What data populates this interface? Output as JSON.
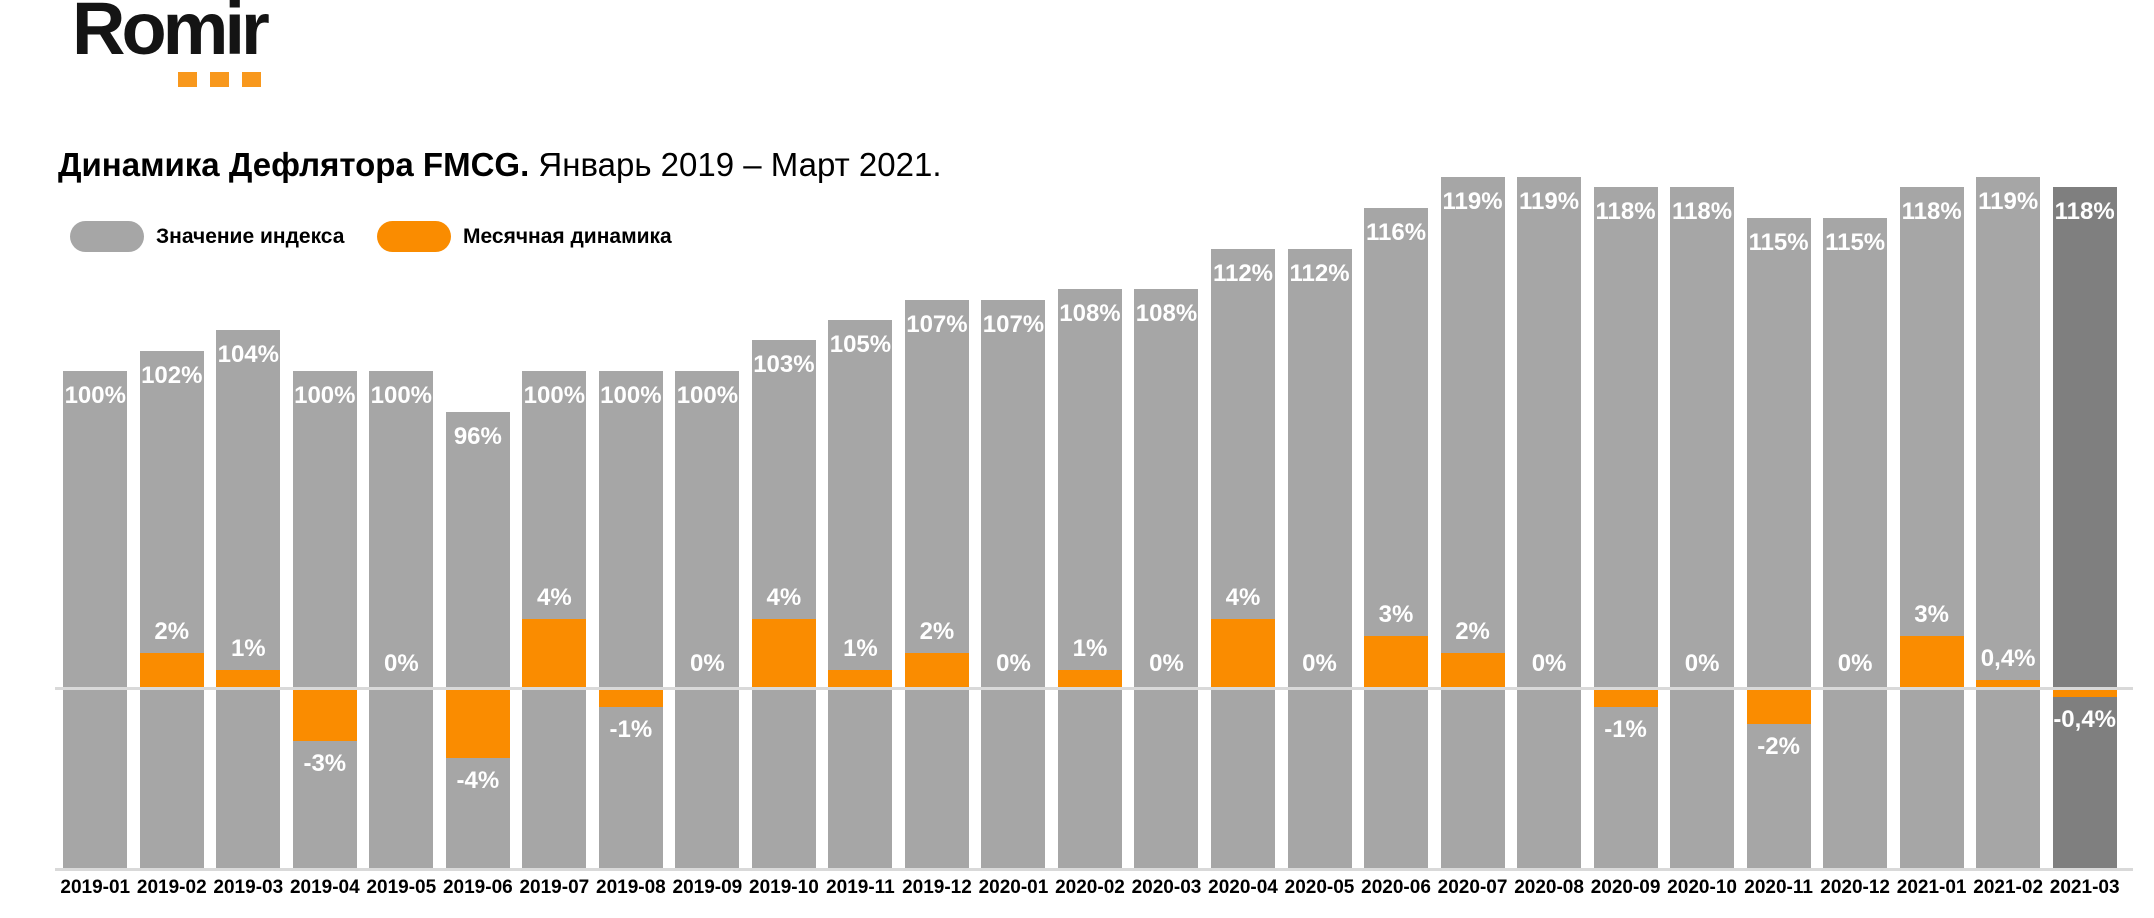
{
  "logo": {
    "text": "Romir",
    "dots_color": "#F8981D"
  },
  "title": {
    "bold": "Динамика Дефлятора FMCG.",
    "regular": " Январь 2019 – Март 2021."
  },
  "legend": {
    "items": [
      {
        "label": "Значение индекса",
        "color": "#A6A6A6"
      },
      {
        "label": "Месячная динамика",
        "color": "#FA8C00"
      }
    ]
  },
  "colors": {
    "index_bar": "#A6A6A6",
    "index_bar_highlight": "#7F7F7F",
    "monthly_bar": "#FA8C00",
    "axis_line": "#D9D9D9",
    "bar_label_text": "#FFFFFF",
    "axis_label_text": "#000000"
  },
  "chart_data": {
    "type": "bar",
    "title": "Динамика Дефлятора FMCG. Январь 2019 – Март 2021.",
    "xlabel": "",
    "ylabel": "",
    "grid": false,
    "legend_position": "top-left",
    "highlight_category": "2021-03",
    "categories": [
      "2019-01",
      "2019-02",
      "2019-03",
      "2019-04",
      "2019-05",
      "2019-06",
      "2019-07",
      "2019-08",
      "2019-09",
      "2019-10",
      "2019-11",
      "2019-12",
      "2020-01",
      "2020-02",
      "2020-03",
      "2020-04",
      "2020-05",
      "2020-06",
      "2020-07",
      "2020-08",
      "2020-09",
      "2020-10",
      "2020-11",
      "2020-12",
      "2021-01",
      "2021-02",
      "2021-03"
    ],
    "series": [
      {
        "name": "Значение индекса",
        "unit": "%",
        "values": [
          100,
          102,
          104,
          100,
          100,
          96,
          100,
          100,
          100,
          103,
          105,
          107,
          107,
          108,
          108,
          112,
          112,
          116,
          119,
          119,
          118,
          118,
          115,
          115,
          118,
          119,
          118
        ],
        "labels": [
          "100%",
          "102%",
          "104%",
          "100%",
          "100%",
          "96%",
          "100%",
          "100%",
          "100%",
          "103%",
          "105%",
          "107%",
          "107%",
          "108%",
          "108%",
          "112%",
          "112%",
          "116%",
          "119%",
          "119%",
          "118%",
          "118%",
          "115%",
          "115%",
          "118%",
          "119%",
          "118%"
        ]
      },
      {
        "name": "Месячная динамика",
        "unit": "%",
        "values": [
          null,
          2,
          1,
          -3,
          0,
          -4,
          4,
          -1,
          0,
          4,
          1,
          2,
          0,
          1,
          0,
          4,
          0,
          3,
          2,
          0,
          -1,
          0,
          -2,
          0,
          3,
          0.4,
          -0.4
        ],
        "labels": [
          "",
          "2%",
          "1%",
          "-3%",
          "0%",
          "-4%",
          "4%",
          "-1%",
          "0%",
          "4%",
          "1%",
          "2%",
          "0%",
          "1%",
          "0%",
          "4%",
          "0%",
          "3%",
          "2%",
          "0%",
          "-1%",
          "0%",
          "-2%",
          "0%",
          "3%",
          "0,4%",
          "-0,4%"
        ]
      }
    ]
  }
}
